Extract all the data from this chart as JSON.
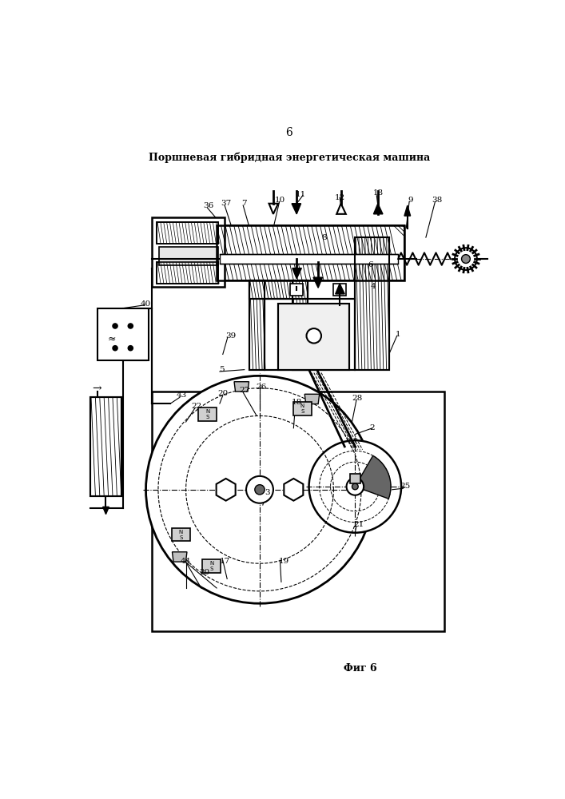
{
  "page_number": "6",
  "title": "Поршневая гибридная энергетическая машина",
  "figure_label": "Фиг 6",
  "bg_color": "#ffffff"
}
